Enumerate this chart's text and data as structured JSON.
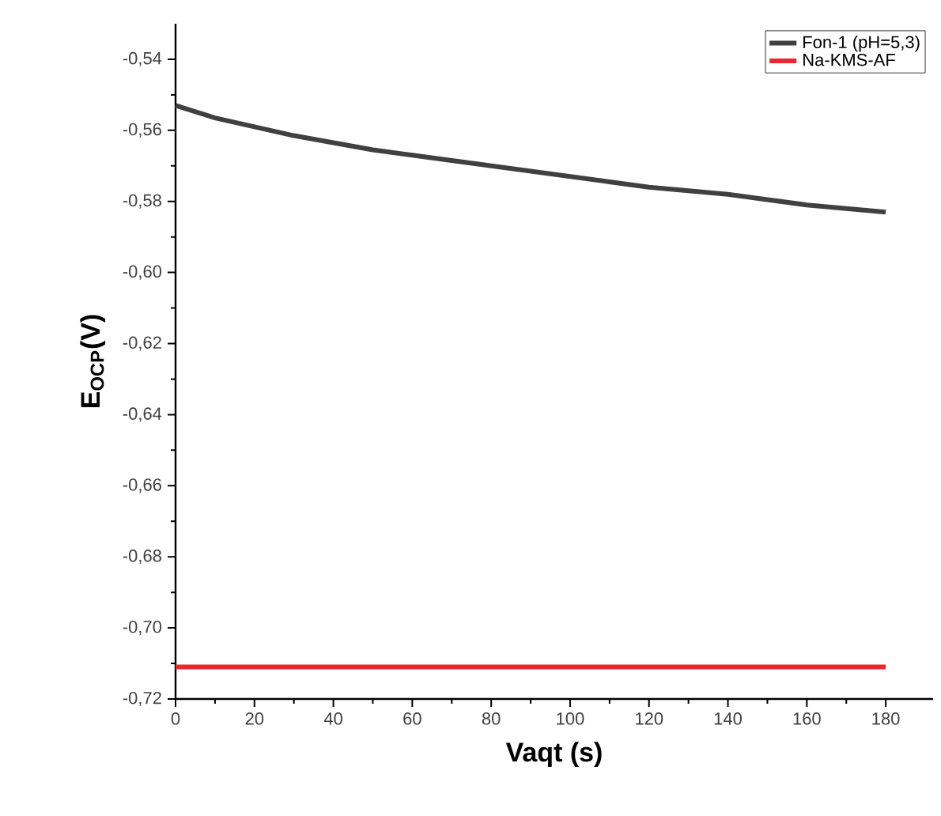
{
  "chart_data": {
    "type": "line",
    "xlabel": "Vaqt (s)",
    "ylabel": "E$_{OCP}$(V)",
    "x": [
      0,
      10,
      20,
      30,
      40,
      50,
      60,
      70,
      80,
      90,
      100,
      110,
      120,
      130,
      140,
      150,
      160,
      170,
      180
    ],
    "series": [
      {
        "name": "Fon-1 (pH=5,3)",
        "color": "#404040",
        "values": [
          -0.553,
          -0.5565,
          -0.559,
          -0.5615,
          -0.5635,
          -0.5655,
          -0.567,
          -0.5685,
          -0.57,
          -0.5715,
          -0.573,
          -0.5745,
          -0.576,
          -0.577,
          -0.578,
          -0.5795,
          -0.581,
          -0.582,
          -0.583
        ]
      },
      {
        "name": "Na-KMS-AF",
        "color": "#e8282e",
        "values": [
          -0.711,
          -0.711,
          -0.711,
          -0.711,
          -0.711,
          -0.711,
          -0.711,
          -0.711,
          -0.711,
          -0.711,
          -0.711,
          -0.711,
          -0.711,
          -0.711,
          -0.711,
          -0.711,
          -0.711,
          -0.711,
          -0.711
        ]
      }
    ],
    "xlim": [
      0,
      192
    ],
    "ylim": [
      -0.72,
      -0.53
    ],
    "xticks": [
      0,
      20,
      40,
      60,
      80,
      100,
      120,
      140,
      160,
      180
    ],
    "yticks": [
      {
        "value": -0.72,
        "label": "-0,72"
      },
      {
        "value": -0.7,
        "label": "-0,70"
      },
      {
        "value": -0.68,
        "label": "-0,68"
      },
      {
        "value": -0.66,
        "label": "-0,66"
      },
      {
        "value": -0.64,
        "label": "-0,64"
      },
      {
        "value": -0.62,
        "label": "-0,62"
      },
      {
        "value": -0.6,
        "label": "-0,60"
      },
      {
        "value": -0.58,
        "label": "-0,58"
      },
      {
        "value": -0.56,
        "label": "-0,56"
      },
      {
        "value": -0.54,
        "label": "-0,54"
      }
    ],
    "grid": false,
    "legend": "top right",
    "marker": "none",
    "line_style": "solid"
  }
}
